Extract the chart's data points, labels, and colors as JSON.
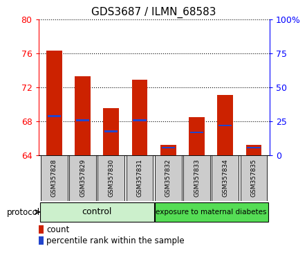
{
  "title": "GDS3687 / ILMN_68583",
  "samples": [
    "GSM357828",
    "GSM357829",
    "GSM357830",
    "GSM357831",
    "GSM357832",
    "GSM357833",
    "GSM357834",
    "GSM357835"
  ],
  "bar_base": 64,
  "bar_tops": [
    76.3,
    73.3,
    69.5,
    72.9,
    65.2,
    68.5,
    71.1,
    65.2
  ],
  "percentile_values": [
    68.6,
    68.1,
    66.8,
    68.1,
    64.9,
    66.7,
    67.5,
    64.9
  ],
  "left_ylim": [
    64,
    80
  ],
  "left_yticks": [
    64,
    68,
    72,
    76,
    80
  ],
  "right_ylim": [
    0,
    100
  ],
  "right_yticks": [
    0,
    25,
    50,
    75,
    100
  ],
  "right_yticklabels": [
    "0",
    "25",
    "50",
    "75",
    "100%"
  ],
  "bar_color": "#cc2200",
  "percentile_color": "#2244cc",
  "grid_color": "#000000",
  "control_label": "control",
  "exposure_label": "exposure to maternal diabetes",
  "control_bg": "#ccf0cc",
  "exposure_bg": "#55dd55",
  "tick_bg": "#cccccc",
  "protocol_label": "protocol",
  "legend_count_label": "count",
  "legend_pct_label": "percentile rank within the sample",
  "bar_width": 0.55
}
